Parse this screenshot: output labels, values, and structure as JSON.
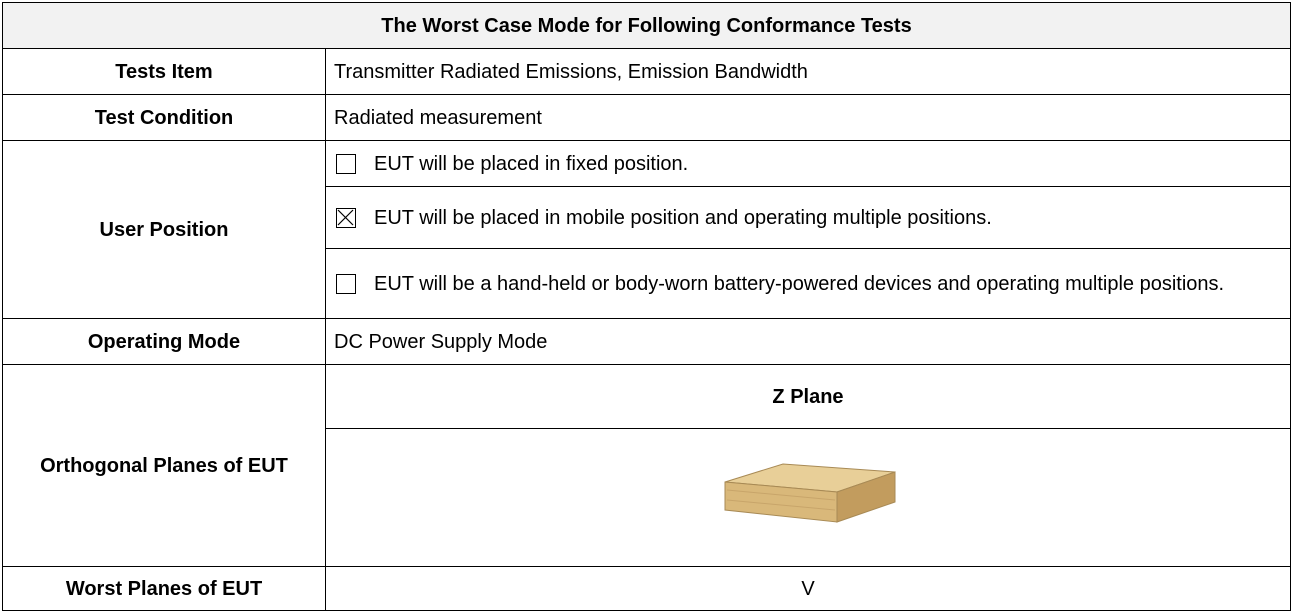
{
  "table": {
    "title": "The Worst Case Mode for Following Conformance Tests",
    "tests_item": {
      "label": "Tests Item",
      "value": "Transmitter Radiated Emissions, Emission Bandwidth"
    },
    "test_condition": {
      "label": "Test Condition",
      "value": "Radiated measurement"
    },
    "user_position": {
      "label": "User Position",
      "options": [
        {
          "text": "EUT will be placed in fixed position.",
          "checked": false
        },
        {
          "text": "EUT will be placed in mobile position and operating multiple positions.",
          "checked": true
        },
        {
          "text": "EUT will be a hand-held or body-worn battery-powered devices and operating multiple positions.",
          "checked": false
        }
      ]
    },
    "operating_mode": {
      "label": "Operating Mode",
      "value": "DC Power Supply Mode"
    },
    "orthogonal_planes": {
      "label": "Orthogonal Planes of EUT",
      "plane": "Z Plane"
    },
    "worst_planes": {
      "label": "Worst Planes of EUT",
      "value": "V"
    }
  }
}
